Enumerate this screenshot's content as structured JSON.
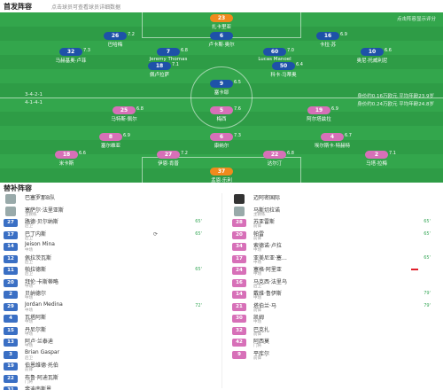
{
  "header": {
    "title": "首发阵容",
    "subtitle": "点击球员可查看球员详细数据"
  },
  "pitch": {
    "corner_note": "点击阵容显示评分",
    "home_formation": "3-4-2-1",
    "away_formation": "4-1-4-1",
    "home_info": "身价约0.16万欧元 平均年龄23.9岁",
    "away_info": "身价约0.24万欧元 平均年龄24.8岁",
    "home_players": [
      {
        "num": "23",
        "name": "扎卡里亚",
        "rating": "",
        "role": "gk"
      },
      {
        "num": "26",
        "name": "巴哈梅",
        "rating": "7.2",
        "role": "home"
      },
      {
        "num": "6",
        "name": "卢卡斯·奥尔",
        "rating": "",
        "role": "home"
      },
      {
        "num": "16",
        "name": "卡拉·苏",
        "rating": "6.9",
        "role": "home"
      },
      {
        "num": "32",
        "name": "马赫基奥·卢菲",
        "rating": "7.3",
        "role": "home"
      },
      {
        "num": "7",
        "name": "Jeremy Thomas",
        "rating": "6.8",
        "role": "home"
      },
      {
        "num": "60",
        "name": "Lucas Manoel",
        "rating": "7.0",
        "role": "home"
      },
      {
        "num": "10",
        "name": "奥尼·托威利尼",
        "rating": "6.6",
        "role": "home"
      },
      {
        "num": "18",
        "name": "佩卢拉萨",
        "rating": "7.1",
        "role": "home"
      },
      {
        "num": "50",
        "name": "科卡·马蒂奥",
        "rating": "6.4",
        "role": "home"
      },
      {
        "num": "9",
        "name": "塞卡耶",
        "rating": "6.5",
        "role": "home"
      }
    ],
    "away_players": [
      {
        "num": "25",
        "name": "马特斯·佩尔",
        "rating": "6.8",
        "role": "away"
      },
      {
        "num": "5",
        "name": "梅西",
        "rating": "7.6",
        "role": "away"
      },
      {
        "num": "19",
        "name": "阿尔塔兹拉",
        "rating": "6.9",
        "role": "away"
      },
      {
        "num": "8",
        "name": "塞尔维亚",
        "rating": "6.9",
        "role": "away"
      },
      {
        "num": "6",
        "name": "康纳尔",
        "rating": "7.3",
        "role": "away"
      },
      {
        "num": "4",
        "name": "埃尔斯卡·特赫特",
        "rating": "6.7",
        "role": "away"
      },
      {
        "num": "18",
        "name": "米卡斯",
        "rating": "6.6",
        "role": "away"
      },
      {
        "num": "27",
        "name": "伊恩·肯普",
        "rating": "7.2",
        "role": "away"
      },
      {
        "num": "22",
        "name": "达尔汀",
        "rating": "6.8",
        "role": "away"
      },
      {
        "num": "2",
        "name": "马塔·拉梅",
        "rating": "7.1",
        "role": "away"
      },
      {
        "num": "37",
        "name": "孟恩·乐利",
        "rating": "",
        "role": "gk"
      }
    ]
  },
  "subs": {
    "title": "替补阵容",
    "home_coach": {
      "name": "巴塞罗那B队",
      "role": "主教练"
    },
    "away_coach": {
      "name": "迈阿密国际",
      "role": ""
    },
    "home_head": {
      "name": "塞萨尔·法里亚斯",
      "role": "主教练"
    },
    "away_head": {
      "name": "马斯切拉诺",
      "role": "主教练"
    },
    "home": [
      {
        "num": "27",
        "name": "路德·贝尔纳斯",
        "role": "后卫",
        "ev": "65'",
        "sw": ""
      },
      {
        "num": "17",
        "name": "巴丁内斯",
        "role": "后卫",
        "ev": "65'",
        "sw": "⟳"
      },
      {
        "num": "14",
        "name": "Jeison Mina",
        "role": "中场",
        "ev": "",
        "sw": ""
      },
      {
        "num": "12",
        "name": "佩拉茨瓦斯",
        "role": "后卫",
        "ev": "",
        "sw": ""
      },
      {
        "num": "11",
        "name": "帕拉德斯",
        "role": "后卫",
        "ev": "65'",
        "sw": ""
      },
      {
        "num": "20",
        "name": "拜伦·卡斯蒂略",
        "role": "中场",
        "ev": "",
        "sw": ""
      },
      {
        "num": "2",
        "name": "贝纳德尔",
        "role": "中场",
        "ev": "",
        "sw": ""
      },
      {
        "num": "29",
        "name": "Jordan Medina",
        "role": "中场",
        "ev": "72'",
        "sw": ""
      },
      {
        "num": "4",
        "name": "瓦塔阿斯",
        "role": "中场",
        "ev": "",
        "sw": ""
      },
      {
        "num": "15",
        "name": "丹尼尔斯",
        "role": "中场",
        "ev": "",
        "sw": ""
      },
      {
        "num": "13",
        "name": "阿卢·兰泰迪",
        "role": "中场",
        "ev": "",
        "sw": ""
      },
      {
        "num": "3",
        "name": "Brian Gaspar",
        "role": "后卫",
        "ev": "",
        "sw": ""
      },
      {
        "num": "19",
        "name": "伯恩维德·托伯",
        "role": "前锋",
        "ev": "",
        "sw": ""
      },
      {
        "num": "22",
        "name": "布鲁·阿迪瓦斯",
        "role": "门将",
        "ev": "",
        "sw": ""
      },
      {
        "num": "31",
        "name": "斐迪南斯恩…",
        "role": "中场",
        "ev": "",
        "sw": ""
      },
      {
        "num": "33",
        "name": "达尔尼",
        "role": "后卫",
        "ev": "",
        "sw": ""
      }
    ],
    "away": [
      {
        "num": "28",
        "name": "苏亚雷斯",
        "role": "前锋",
        "ev": "65'",
        "sw": ""
      },
      {
        "num": "20",
        "name": "帕雷",
        "role": "前锋",
        "ev": "65'",
        "sw": ""
      },
      {
        "num": "34",
        "name": "索德诺·卢拉",
        "role": "中场",
        "ev": "",
        "sw": ""
      },
      {
        "num": "17",
        "name": "亚美尼亚·塞…",
        "role": "中场",
        "ev": "65'",
        "sw": ""
      },
      {
        "num": "24",
        "name": "塞格·阿里亚",
        "role": "中场",
        "ev": "",
        "sw": "",
        "red": true
      },
      {
        "num": "16",
        "name": "马克西·法里乌",
        "role": "后卫",
        "ev": "",
        "sw": ""
      },
      {
        "num": "14",
        "name": "戴维·鲁伊斯",
        "role": "中场",
        "ev": "79'",
        "sw": ""
      },
      {
        "num": "21",
        "name": "塔伯兰·马",
        "role": "前锋",
        "ev": "79'",
        "sw": ""
      },
      {
        "num": "30",
        "name": "凯姆",
        "role": "中场",
        "ev": "",
        "sw": ""
      },
      {
        "num": "32",
        "name": "巴克扎",
        "role": "前锋",
        "ev": "",
        "sw": ""
      },
      {
        "num": "42",
        "name": "阿西莫",
        "role": "门将",
        "ev": "",
        "sw": ""
      },
      {
        "num": "9",
        "name": "平库尔",
        "role": "前锋",
        "ev": "",
        "sw": ""
      }
    ]
  }
}
